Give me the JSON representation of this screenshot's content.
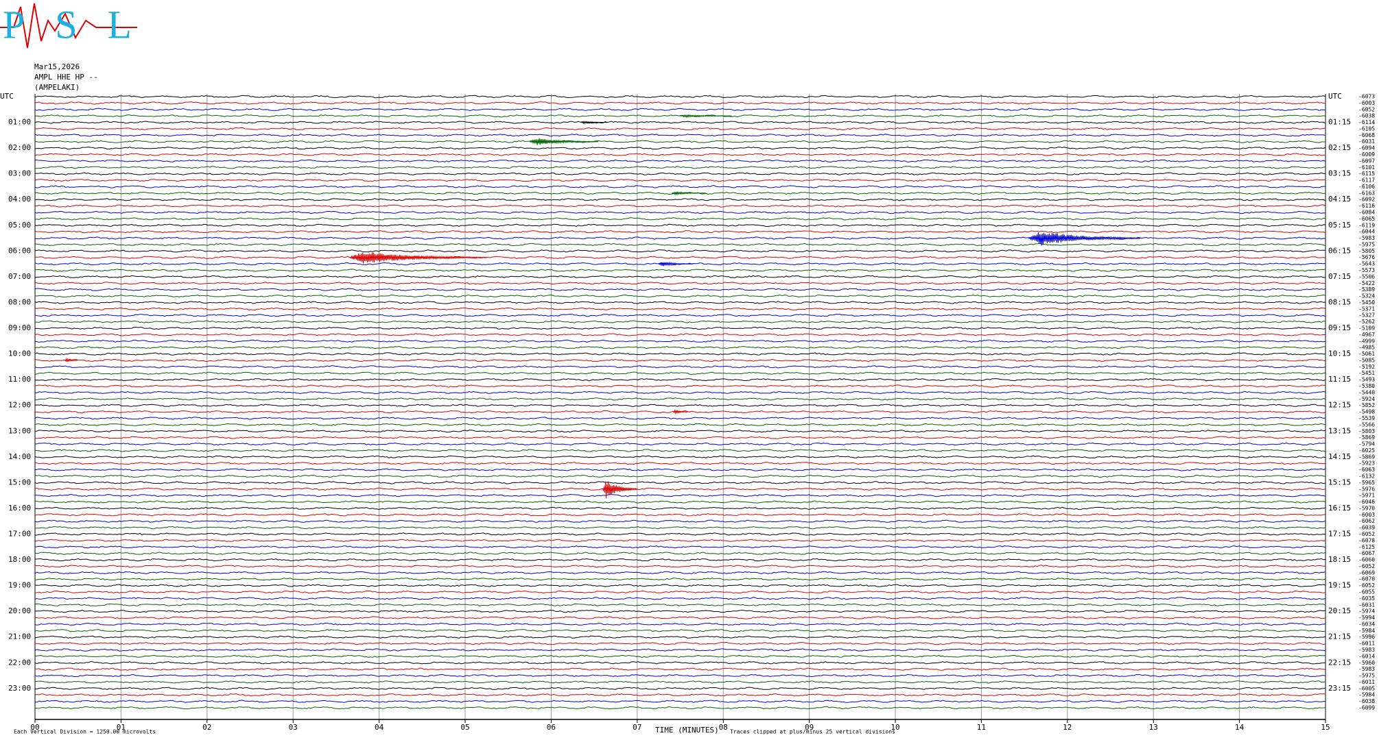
{
  "chart_data": {
    "type": "helicorder",
    "header": [
      "Mar15,2026",
      "AMPL HHE HP --",
      "(AMPELAKI)"
    ],
    "logo": "PSL",
    "left_labels": [
      "UTC",
      "01:00",
      "02:00",
      "03:00",
      "04:00",
      "05:00",
      "06:00",
      "07:00",
      "08:00",
      "09:00",
      "10:00",
      "11:00",
      "12:00",
      "13:00",
      "14:00",
      "15:00",
      "16:00",
      "17:00",
      "18:00",
      "19:00",
      "20:00",
      "21:00",
      "22:00",
      "23:00"
    ],
    "right_labels": [
      "UTC",
      "01:15",
      "02:15",
      "03:15",
      "04:15",
      "05:15",
      "06:15",
      "07:15",
      "08:15",
      "09:15",
      "10:15",
      "11:15",
      "12:15",
      "13:15",
      "14:15",
      "15:15",
      "16:15",
      "17:15",
      "18:15",
      "19:15",
      "20:15",
      "21:15",
      "22:15",
      "23:15"
    ],
    "trace_colors": [
      "#000000",
      "#e00000",
      "#0000e0",
      "#006400"
    ],
    "trace_offsets": [
      -6073,
      -6003,
      -6052,
      -6038,
      -6114,
      -6105,
      -6068,
      -6031,
      -6094,
      -6009,
      -6097,
      -6101,
      -6115,
      -6117,
      -6106,
      -6163,
      -6092,
      -6116,
      -6084,
      -6065,
      -6119,
      -6044,
      -5983,
      -5975,
      -5805,
      -5676,
      -5643,
      -5573,
      -5506,
      -5422,
      -5389,
      -5324,
      -5450,
      -5371,
      -5327,
      -5262,
      -5109,
      -4967,
      -4999,
      -4985,
      -5061,
      -5085,
      -5192,
      -5451,
      -5493,
      -5380,
      -5440,
      -5924,
      -5852,
      -5498,
      -5539,
      -5566,
      -5803,
      -5869,
      -5794,
      -6025,
      -5869,
      -5923,
      -6063,
      -6132,
      -5965,
      -5976,
      -5971,
      -6046,
      -5970,
      -6003,
      -6062,
      -6039,
      -6052,
      -6078,
      -6125,
      -6067,
      -6060,
      -6052,
      -6069,
      -6070,
      -6052,
      -6055,
      -6035,
      -6031,
      -5974,
      -5994,
      -6034,
      -5984,
      -5996,
      -6011,
      -5983,
      -6014,
      -5960,
      -5983,
      -5975,
      -6011,
      -6005,
      -5984,
      -6038,
      -6099
    ],
    "xlim": [
      0,
      15
    ],
    "xticks": [
      {
        "value": 0,
        "label": "00"
      },
      {
        "value": 1,
        "label": "01"
      },
      {
        "value": 2,
        "label": "02"
      },
      {
        "value": 3,
        "label": "03"
      },
      {
        "value": 4,
        "label": "04"
      },
      {
        "value": 5,
        "label": "05"
      },
      {
        "value": 6,
        "label": "06"
      },
      {
        "value": 7,
        "label": "07"
      },
      {
        "value": 8,
        "label": "08"
      },
      {
        "value": 9,
        "label": "09"
      },
      {
        "value": 10,
        "label": "10"
      },
      {
        "value": 11,
        "label": "11"
      },
      {
        "value": 12,
        "label": "12"
      },
      {
        "value": 13,
        "label": "13"
      },
      {
        "value": 14,
        "label": "14"
      },
      {
        "value": 15,
        "label": "15"
      }
    ],
    "x_label": "TIME (MINUTES)",
    "scale_note": "Each Vertical Division = 1250.00 microvolts",
    "clip_note": "Traces clipped at plus/minus 25 vertical divisions",
    "events": [
      {
        "trace": 3,
        "minute": 7.5,
        "amplitude": 0.2,
        "duration": 0.6
      },
      {
        "trace": 4,
        "minute": 6.35,
        "amplitude": 0.2,
        "duration": 0.3
      },
      {
        "trace": 7,
        "minute": 5.75,
        "amplitude": 0.6,
        "duration": 0.8
      },
      {
        "trace": 15,
        "minute": 7.4,
        "amplitude": 0.3,
        "duration": 0.4
      },
      {
        "trace": 22,
        "minute": 11.55,
        "amplitude": 1.2,
        "duration": 1.3
      },
      {
        "trace": 25,
        "minute": 3.65,
        "amplitude": 1.0,
        "duration": 1.6
      },
      {
        "trace": 26,
        "minute": 7.25,
        "amplitude": 0.4,
        "duration": 0.4
      },
      {
        "trace": 41,
        "minute": 0.35,
        "amplitude": 0.3,
        "duration": 0.15
      },
      {
        "trace": 49,
        "minute": 7.42,
        "amplitude": 0.3,
        "duration": 0.2
      },
      {
        "trace": 61,
        "minute": 6.6,
        "amplitude": 1.5,
        "duration": 0.4
      }
    ]
  }
}
